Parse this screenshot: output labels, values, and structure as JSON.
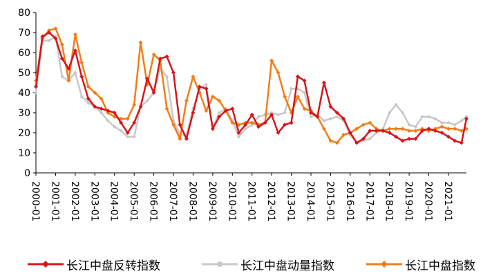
{
  "chart_data": {
    "type": "line",
    "title": "",
    "xlabel": "",
    "ylabel": "",
    "ylim": [
      0,
      80
    ],
    "yticks": [
      0,
      10,
      20,
      30,
      40,
      50,
      60,
      70,
      80
    ],
    "grid": false,
    "legend_position": "bottom",
    "x_tick_labels": [
      "2000-01",
      "2001-01",
      "2002-01",
      "2003-01",
      "2004-01",
      "2005-01",
      "2006-01",
      "2007-01",
      "2008-01",
      "2009-01",
      "2010-01",
      "2011-01",
      "2012-01",
      "2013-01",
      "2014-01",
      "2015-01",
      "2016-01",
      "2017-01",
      "2018-01",
      "2019-01",
      "2020-01",
      "2021-01"
    ],
    "x": [
      "2000-01",
      "2000-05",
      "2000-09",
      "2001-01",
      "2001-05",
      "2001-09",
      "2002-01",
      "2002-05",
      "2002-09",
      "2003-01",
      "2003-05",
      "2003-09",
      "2004-01",
      "2004-05",
      "2004-09",
      "2005-01",
      "2005-05",
      "2005-09",
      "2006-01",
      "2006-05",
      "2006-09",
      "2007-01",
      "2007-05",
      "2007-09",
      "2008-01",
      "2008-05",
      "2008-09",
      "2009-01",
      "2009-05",
      "2009-09",
      "2010-01",
      "2010-05",
      "2010-09",
      "2011-01",
      "2011-05",
      "2011-09",
      "2012-01",
      "2012-05",
      "2012-09",
      "2013-01",
      "2013-05",
      "2013-09",
      "2014-01",
      "2014-05",
      "2014-09",
      "2015-01",
      "2015-05",
      "2015-09",
      "2016-01",
      "2016-05",
      "2016-09",
      "2017-01",
      "2017-05",
      "2017-09",
      "2018-01",
      "2018-05",
      "2018-09",
      "2019-01",
      "2019-05",
      "2019-09",
      "2020-01",
      "2020-05",
      "2020-09",
      "2021-01",
      "2021-05",
      "2021-09",
      "2021-12"
    ],
    "series": [
      {
        "name": "长江中盘反转指数",
        "color": "#d7141a",
        "marker": "diamond",
        "values": [
          43,
          68,
          70,
          67,
          57,
          52,
          61,
          48,
          37,
          33,
          32,
          31,
          30,
          25,
          20,
          25,
          33,
          47,
          40,
          57,
          58,
          50,
          24,
          17,
          30,
          43,
          42,
          22,
          28,
          31,
          32,
          20,
          24,
          29,
          23,
          25,
          29,
          20,
          24,
          25,
          48,
          46,
          30,
          28,
          45,
          33,
          30,
          27,
          20,
          15,
          17,
          21,
          21,
          21,
          20,
          18,
          16,
          17,
          17,
          21,
          22,
          21,
          20,
          18,
          16,
          15,
          27
        ]
      },
      {
        "name": "长江中盘动量指数",
        "color": "#c8c8c8",
        "marker": "circle",
        "values": [
          40,
          66,
          66,
          68,
          48,
          46,
          50,
          38,
          35,
          33,
          30,
          26,
          23,
          21,
          18,
          18,
          33,
          36,
          40,
          52,
          48,
          26,
          19,
          19,
          32,
          42,
          44,
          22,
          30,
          32,
          26,
          18,
          22,
          24,
          28,
          29,
          30,
          29,
          30,
          42,
          42,
          40,
          28,
          29,
          26,
          27,
          28,
          26,
          19,
          15,
          16,
          17,
          20,
          22,
          30,
          34,
          30,
          24,
          23,
          28,
          28,
          27,
          25,
          25,
          24,
          26,
          28
        ]
      },
      {
        "name": "长江中盘指数",
        "color": "#f47c16",
        "marker": "diamond",
        "values": [
          46,
          67,
          71,
          72,
          64,
          46,
          69,
          55,
          43,
          40,
          37,
          30,
          28,
          27,
          27,
          34,
          65,
          44,
          59,
          56,
          32,
          24,
          17,
          36,
          48,
          40,
          31,
          38,
          36,
          31,
          25,
          24,
          25,
          25,
          24,
          25,
          56,
          50,
          38,
          30,
          38,
          32,
          31,
          28,
          22,
          16,
          15,
          19,
          20,
          22,
          24,
          25,
          22,
          21,
          22,
          22,
          22,
          21,
          21,
          22,
          21,
          22,
          23,
          22,
          22,
          21,
          22
        ]
      }
    ]
  }
}
